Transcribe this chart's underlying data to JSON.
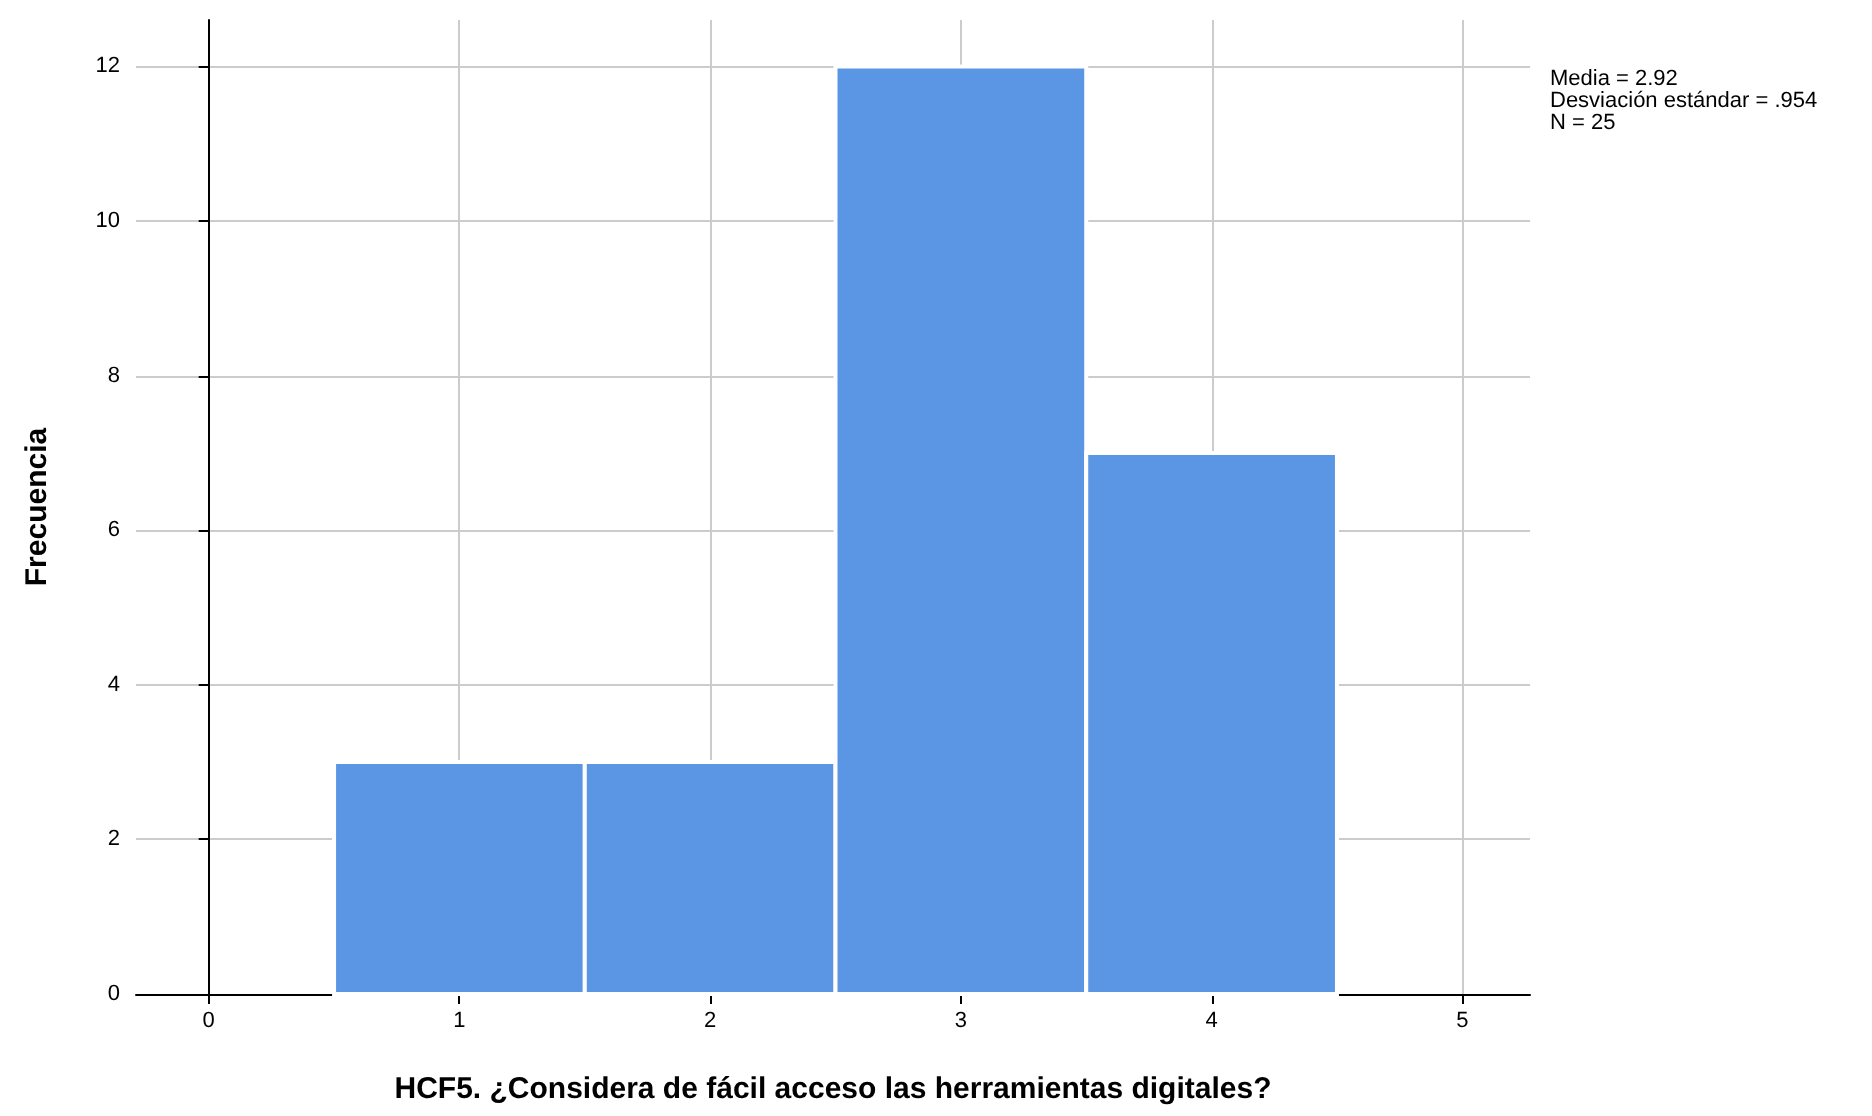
{
  "chart_data": {
    "type": "histogram",
    "xlabel": "HCF5. ¿Considera de fácil acceso las herramientas digitales?",
    "ylabel": "Frecuencia",
    "bins": [
      0.5,
      1.5,
      2.5,
      3.5,
      4.5
    ],
    "values": [
      3,
      3,
      12,
      7
    ],
    "color": "#5a96e3",
    "xlim": [
      -0.29,
      5.27
    ],
    "xticks": [
      0,
      1,
      2,
      3,
      4,
      5
    ],
    "ylim": [
      0,
      12.6
    ],
    "yticks": [
      0,
      2,
      4,
      6,
      8,
      10,
      12
    ],
    "grid": true,
    "annotations": [
      "Media = 2.92",
      "Desviación estándar = .954",
      "N = 25"
    ]
  }
}
